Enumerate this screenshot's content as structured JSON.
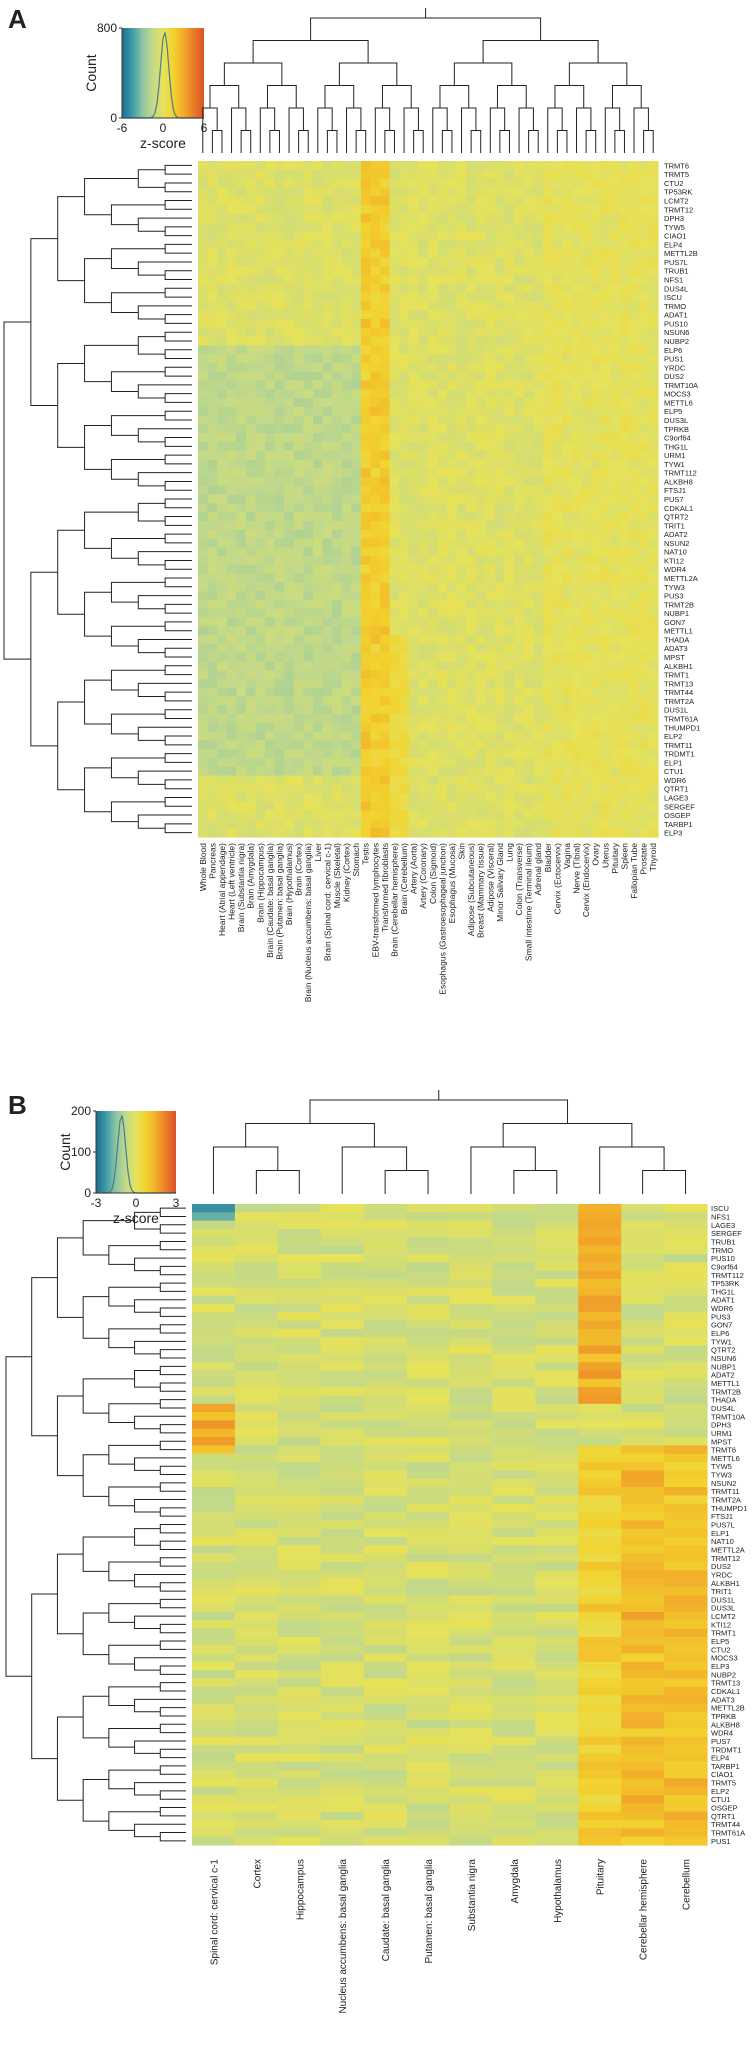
{
  "colors": {
    "ramp": [
      "#1a6f8e",
      "#3f9aa8",
      "#8dc6a0",
      "#c2d98a",
      "#e6e25a",
      "#f2d22e",
      "#f2ad2a",
      "#ea7b26",
      "#d9542a"
    ],
    "dendro": "#222222",
    "text": "#222222"
  },
  "chart_data": [
    {
      "panel": "A",
      "type": "heatmap",
      "legend": {
        "ylabel": "Count",
        "xlabel": "z-score",
        "yticks": [
          "800",
          "0"
        ],
        "xticks": [
          "-6",
          "0",
          "6"
        ]
      },
      "columns": [
        "Whole Blood",
        "Pancreas",
        "Heart (Atrial appendage)",
        "Heart (Left ventricle)",
        "Brain (Substantia nigra)",
        "Brain (Amygdala)",
        "Brain (Hippocampus)",
        "Brain (Caudate: basal ganglia)",
        "Brain (Putamen: basal ganglia)",
        "Brain (Hypothalamus)",
        "Brain (Cortex)",
        "Brain (Nucleus accumbens: basal ganglia)",
        "Liver",
        "Brain (Spinal cord: cervical c-1)",
        "Muscle (Skeletal)",
        "Kidney (Cortex)",
        "Stomach",
        "Testis",
        "EBV-transformed lymphocytes",
        "Transformed fibroblasts",
        "Brain (Cerebellar hemisphere)",
        "Brain (Cerebellum)",
        "Artery (Aorta)",
        "Artery (Coronary)",
        "Colon (Sigmoid)",
        "Esophagus (Gastroesophageal junction)",
        "Esophagus (Mucosa)",
        "Skin",
        "Adipose (Subcutaneous)",
        "Breast (Mammary tissue)",
        "Adipose (Visceral)",
        "Minor Salivary Gland",
        "Lung",
        "Colon (Transverse)",
        "Small intestine (Terminal ileum)",
        "Adrenal gland",
        "Bladder",
        "Cervix (Ectocervix)",
        "Vagina",
        "Nerve (Tibial)",
        "Cervix (Endocervix)",
        "Ovary",
        "Uterus",
        "Pituitary",
        "Spleen",
        "Fallopian Tube",
        "Prostate",
        "Thyroid"
      ],
      "rows": [
        "TRMT6",
        "TRMT5",
        "CTU2",
        "TP53RK",
        "LCMT2",
        "TRMT12",
        "DPH3",
        "TYW5",
        "CIAO1",
        "ELP4",
        "METTL2B",
        "PUS7L",
        "TRUB1",
        "NFS1",
        "DUS4L",
        "ISCU",
        "TRMO",
        "ADAT1",
        "PUS10",
        "NSUN6",
        "NUBP2",
        "ELP6",
        "PUS1",
        "YRDC",
        "DUS2",
        "TRMT10A",
        "MOCS3",
        "METTL6",
        "ELP5",
        "DUS3L",
        "TPRKB",
        "C9orf64",
        "THG1L",
        "URM1",
        "TYW1",
        "TRMT112",
        "ALKBH8",
        "FTSJ1",
        "PUS7",
        "CDKAL1",
        "QTRT2",
        "TRIT1",
        "ADAT2",
        "NSUN2",
        "NAT10",
        "KTI12",
        "WDR4",
        "METTL2A",
        "TYW3",
        "PUS3",
        "TRMT2B",
        "NUBP1",
        "GON7",
        "METTL1",
        "THADA",
        "ADAT3",
        "MPST",
        "ALKBH1",
        "TRMT1",
        "TRMT13",
        "TRMT44",
        "TRMT2A",
        "DUS1L",
        "TRMT61A",
        "THUMPD1",
        "ELP2",
        "TRMT11",
        "TRDMT1",
        "ELP1",
        "CTU1",
        "WDR6",
        "QTRT1",
        "LAGE3",
        "SERGEF",
        "OSGEP",
        "TARBP1",
        "ELP3"
      ]
    },
    {
      "panel": "B",
      "type": "heatmap",
      "legend": {
        "ylabel": "Count",
        "xlabel": "z-score",
        "yticks": [
          "200",
          "100",
          "0"
        ],
        "xticks": [
          "-3",
          "0",
          "3"
        ]
      },
      "columns": [
        "Spinal cord: cervical c-1",
        "Cortex",
        "Hippocampus",
        "Nucleus accumbens: basal ganglia",
        "Caudate: basal ganglia",
        "Putamen: basal ganglia",
        "Substantia nigra",
        "Amygdala",
        "Hypothalamus",
        "Pituitary",
        "Cerebellar hemisphere",
        "Cerebellum"
      ],
      "rows": [
        "ISCU",
        "NFS1",
        "LAGE3",
        "SERGEF",
        "TRUB1",
        "TRMO",
        "PUS10",
        "C9orf64",
        "TRMT112",
        "TP53RK",
        "THG1L",
        "ADAT1",
        "WDR6",
        "PUS3",
        "GON7",
        "ELP6",
        "TYW1",
        "QTRT2",
        "NSUN6",
        "NUBP1",
        "ADAT2",
        "METTL1",
        "TRMT2B",
        "THADA",
        "DUS4L",
        "TRMT10A",
        "DPH3",
        "URM1",
        "MPST",
        "TRMT6",
        "METTL6",
        "TYW5",
        "TYW3",
        "NSUN2",
        "TRMT11",
        "TRMT2A",
        "THUMPD1",
        "FTSJ1",
        "PUS7L",
        "ELP1",
        "NAT10",
        "METTL2A",
        "TRMT12",
        "DUS2",
        "YRDC",
        "ALKBH1",
        "TRIT1",
        "DUS1L",
        "DUS3L",
        "LCMT2",
        "KTI12",
        "TRMT1",
        "ELP5",
        "CTU2",
        "MOCS3",
        "ELP3",
        "NUBP2",
        "TRMT13",
        "CDKAL1",
        "ADAT3",
        "METTL2B",
        "TPRKB",
        "ALKBH8",
        "WDR4",
        "PUS7",
        "TRDMT1",
        "ELP4",
        "TARBP1",
        "CIAO1",
        "TRMT5",
        "ELP2",
        "CTU1",
        "OSGEP",
        "QTRT1",
        "TRMT44",
        "TRMT61A",
        "PUS1"
      ]
    }
  ]
}
